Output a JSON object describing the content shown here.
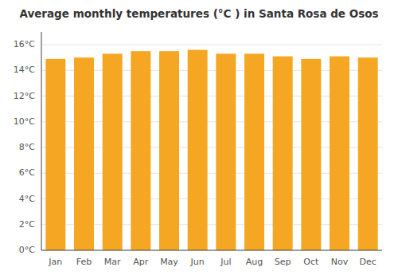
{
  "chart_data": {
    "type": "bar",
    "title": "Average monthly temperatures (°C ) in Santa Rosa de Osos",
    "categories": [
      "Jan",
      "Feb",
      "Mar",
      "Apr",
      "May",
      "Jun",
      "Jul",
      "Aug",
      "Sep",
      "Oct",
      "Nov",
      "Dec"
    ],
    "values": [
      14.9,
      15.0,
      15.3,
      15.5,
      15.5,
      15.6,
      15.3,
      15.3,
      15.1,
      14.9,
      15.1,
      15.0
    ],
    "color": "#F5A623",
    "ylim": [
      0,
      17
    ],
    "yticks": [
      {
        "value": 0,
        "label": "0°C"
      },
      {
        "value": 2,
        "label": "2°C"
      },
      {
        "value": 4,
        "label": "4°C"
      },
      {
        "value": 6,
        "label": "6°C"
      },
      {
        "value": 8,
        "label": "8°C"
      },
      {
        "value": 10,
        "label": "10°C"
      },
      {
        "value": 12,
        "label": "12°C"
      },
      {
        "value": 14,
        "label": "14°C"
      },
      {
        "value": 16,
        "label": "16°C"
      }
    ],
    "grid": true
  }
}
